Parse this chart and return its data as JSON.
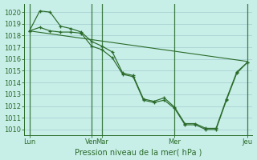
{
  "bg_color": "#c8eee8",
  "grid_color": "#a0cccc",
  "line_color": "#2a6b2a",
  "xlabel": "Pression niveau de la mer( hPa )",
  "ylim": [
    1009.5,
    1020.7
  ],
  "yticks": [
    1010,
    1011,
    1012,
    1013,
    1014,
    1015,
    1016,
    1017,
    1018,
    1019,
    1020
  ],
  "xlim": [
    -0.5,
    21.5
  ],
  "xtick_positions": [
    0,
    6,
    7,
    14,
    21
  ],
  "xtick_labels": [
    "Lun",
    "Ven",
    "Mar",
    "Mer",
    "Jeu"
  ],
  "vline_positions": [
    0,
    6,
    7,
    14,
    21
  ],
  "series1_x": [
    0,
    1,
    2,
    3,
    4,
    5,
    6,
    7,
    8,
    9,
    10,
    11,
    12,
    13,
    14,
    15,
    16,
    17,
    18,
    19,
    20,
    21
  ],
  "series1_y": [
    1018.4,
    1018.7,
    1018.4,
    1018.3,
    1018.3,
    1018.2,
    1017.1,
    1016.8,
    1016.1,
    1014.7,
    1014.5,
    1012.5,
    1012.3,
    1012.5,
    1011.8,
    1010.4,
    1010.4,
    1010.0,
    1010.0,
    1012.5,
    1014.8,
    1015.7
  ],
  "series2_x": [
    0,
    1,
    2,
    3,
    4,
    5,
    6,
    7,
    8,
    9,
    10,
    11,
    12,
    13,
    14,
    15,
    16,
    17,
    18,
    19,
    20,
    21
  ],
  "series2_y": [
    1018.4,
    1020.1,
    1020.0,
    1018.8,
    1018.6,
    1018.3,
    1017.5,
    1017.1,
    1016.6,
    1014.8,
    1014.6,
    1012.6,
    1012.4,
    1012.7,
    1011.9,
    1010.5,
    1010.5,
    1010.1,
    1010.1,
    1012.6,
    1014.9,
    1015.7
  ],
  "series3_x": [
    0,
    21
  ],
  "series3_y": [
    1018.4,
    1015.8
  ],
  "tick_fontsize": 6.0,
  "label_fontsize": 7.0
}
